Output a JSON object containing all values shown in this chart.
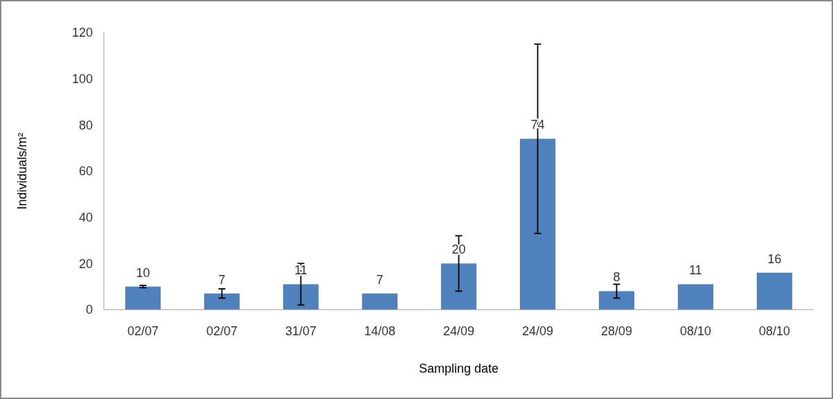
{
  "chart_data": {
    "type": "bar",
    "xlabel": "Sampling date",
    "ylabel": "Individuals/m²",
    "categories": [
      "02/07",
      "02/07",
      "31/07",
      "14/08",
      "24/09",
      "24/09",
      "28/09",
      "08/10",
      "08/10"
    ],
    "values": [
      10,
      7,
      11,
      7,
      20,
      74,
      8,
      11,
      16
    ],
    "errors": [
      [
        9.5,
        10.5
      ],
      [
        5,
        9
      ],
      [
        2,
        20
      ],
      null,
      [
        8,
        32
      ],
      [
        33,
        115
      ],
      [
        5,
        11
      ],
      null,
      null
    ],
    "color": "#4f81bd",
    "ylim": [
      0,
      120
    ],
    "yticks": [
      0,
      20,
      40,
      60,
      80,
      100,
      120
    ],
    "grid": false,
    "data_labels": true
  }
}
